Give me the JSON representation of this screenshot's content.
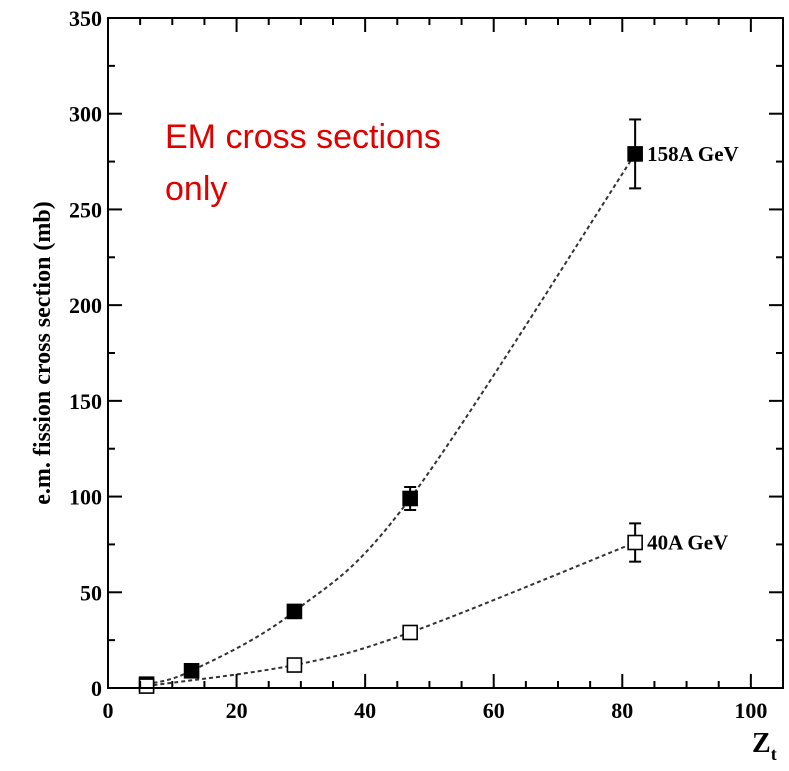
{
  "chart_data": {
    "type": "scatter",
    "title": "",
    "xlabel": "Z",
    "xlabel_sub": "t",
    "ylabel": "e.m. fission cross section (mb)",
    "xlim": [
      0,
      105
    ],
    "ylim": [
      0,
      350
    ],
    "xticks": [
      0,
      20,
      40,
      60,
      80,
      100
    ],
    "yticks": [
      0,
      50,
      100,
      150,
      200,
      250,
      300,
      350
    ],
    "grid": false,
    "annotation": {
      "lines": [
        "EM cross sections",
        "only"
      ],
      "color": "#e00000"
    },
    "series": [
      {
        "name": "158A GeV",
        "marker": "filled-square",
        "line": "dotted",
        "x": [
          6,
          13,
          29,
          47,
          82
        ],
        "y": [
          2,
          9,
          40,
          99,
          279
        ],
        "err": [
          0,
          0,
          0,
          6,
          18
        ]
      },
      {
        "name": "40A GeV",
        "marker": "open-square",
        "line": "dotted",
        "x": [
          6,
          29,
          47,
          82
        ],
        "y": [
          1,
          12,
          29,
          76
        ],
        "err": [
          0,
          0,
          0,
          10
        ]
      }
    ]
  }
}
